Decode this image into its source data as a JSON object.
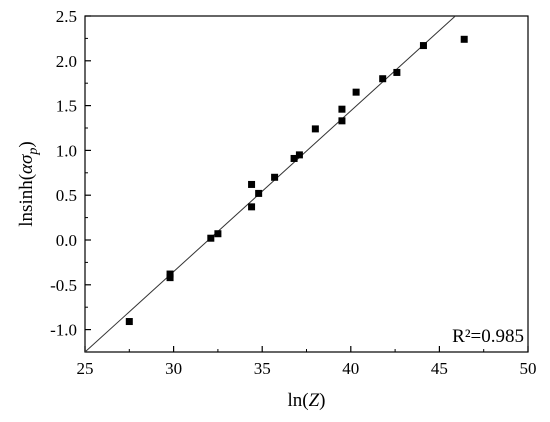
{
  "chart_data": {
    "type": "scatter",
    "xlabel": "ln(Z)",
    "ylabel": "lnsinh(ασp)",
    "xlim": [
      25,
      50
    ],
    "ylim": [
      -1.25,
      2.5
    ],
    "xticks": [
      25,
      30,
      35,
      40,
      45,
      50
    ],
    "yticks": [
      -1.0,
      -0.5,
      0.0,
      0.5,
      1.0,
      1.5,
      2.0,
      2.5
    ],
    "xtick_labels": [
      "25",
      "30",
      "35",
      "40",
      "45",
      "50"
    ],
    "ytick_labels": [
      "-1.0",
      "-0.5",
      "0.0",
      "0.5",
      "1.0",
      "1.5",
      "2.0",
      "2.5"
    ],
    "grid": false,
    "series": [
      {
        "marker": "square",
        "color": "#000000",
        "points": [
          [
            27.5,
            -0.91
          ],
          [
            29.8,
            -0.38
          ],
          [
            29.8,
            -0.42
          ],
          [
            32.1,
            0.02
          ],
          [
            32.5,
            0.07
          ],
          [
            34.4,
            0.37
          ],
          [
            34.4,
            0.62
          ],
          [
            34.8,
            0.52
          ],
          [
            35.7,
            0.7
          ],
          [
            36.8,
            0.91
          ],
          [
            37.1,
            0.95
          ],
          [
            38.0,
            1.24
          ],
          [
            39.5,
            1.33
          ],
          [
            39.5,
            1.46
          ],
          [
            40.3,
            1.65
          ],
          [
            41.8,
            1.8
          ],
          [
            42.6,
            1.87
          ],
          [
            44.1,
            2.17
          ],
          [
            46.4,
            2.24
          ]
        ]
      }
    ],
    "fit_line": {
      "x": [
        25.0,
        45.9
      ],
      "y": [
        -1.25,
        2.5
      ],
      "color": "#333333"
    },
    "annotations": [
      {
        "text": "R²=0.985",
        "position": "bottom-right"
      }
    ]
  }
}
